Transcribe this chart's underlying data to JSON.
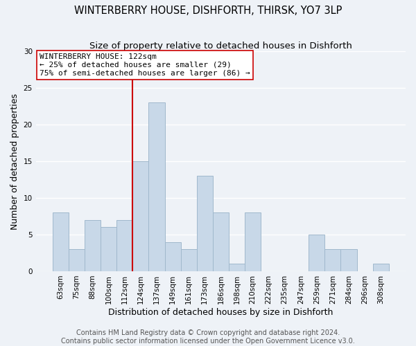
{
  "title": "WINTERBERRY HOUSE, DISHFORTH, THIRSK, YO7 3LP",
  "subtitle": "Size of property relative to detached houses in Dishforth",
  "xlabel": "Distribution of detached houses by size in Dishforth",
  "ylabel": "Number of detached properties",
  "bin_labels": [
    "63sqm",
    "75sqm",
    "88sqm",
    "100sqm",
    "112sqm",
    "124sqm",
    "137sqm",
    "149sqm",
    "161sqm",
    "173sqm",
    "186sqm",
    "198sqm",
    "210sqm",
    "222sqm",
    "235sqm",
    "247sqm",
    "259sqm",
    "271sqm",
    "284sqm",
    "296sqm",
    "308sqm"
  ],
  "bar_heights": [
    8,
    3,
    7,
    6,
    7,
    15,
    23,
    4,
    3,
    13,
    8,
    1,
    8,
    0,
    0,
    0,
    5,
    3,
    3,
    0,
    1
  ],
  "bar_color": "#c8d8e8",
  "bar_edge_color": "#a0b8cc",
  "vline_index": 5,
  "vline_color": "#cc0000",
  "annotation_line1": "WINTERBERRY HOUSE: 122sqm",
  "annotation_line2": "← 25% of detached houses are smaller (29)",
  "annotation_line3": "75% of semi-detached houses are larger (86) →",
  "annotation_box_color": "#ffffff",
  "annotation_box_edge": "#cc0000",
  "ylim": [
    0,
    30
  ],
  "yticks": [
    0,
    5,
    10,
    15,
    20,
    25,
    30
  ],
  "footer1": "Contains HM Land Registry data © Crown copyright and database right 2024.",
  "footer2": "Contains public sector information licensed under the Open Government Licence v3.0.",
  "background_color": "#eef2f7",
  "grid_color": "#ffffff",
  "title_fontsize": 10.5,
  "subtitle_fontsize": 9.5,
  "axis_label_fontsize": 9,
  "tick_fontsize": 7.5,
  "annotation_fontsize": 8,
  "footer_fontsize": 7
}
